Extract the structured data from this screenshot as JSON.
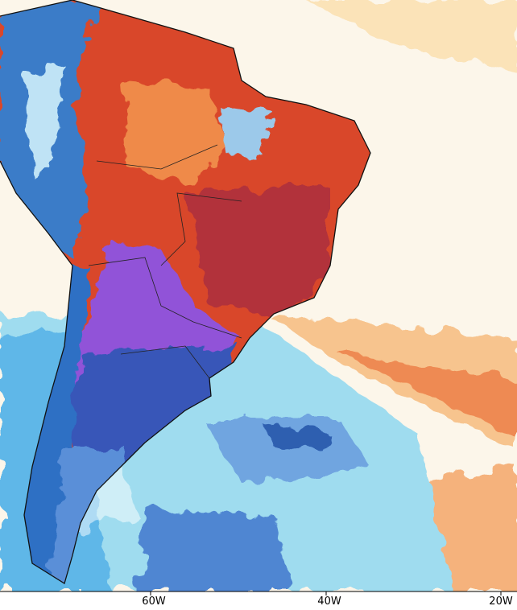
{
  "axis_labels": [
    "60W",
    "40W",
    "20W"
  ]
}
